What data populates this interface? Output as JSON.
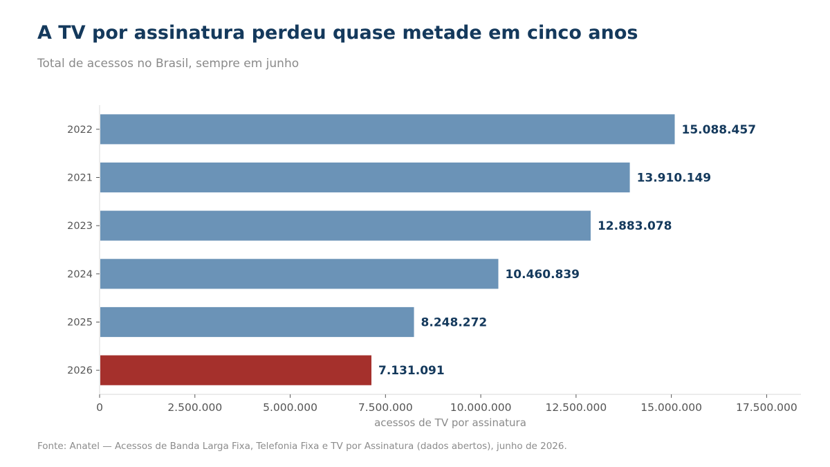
{
  "chart_data": {
    "type": "bar",
    "orientation": "horizontal",
    "title": "A TV por assinatura perdeu quase metade em cinco anos",
    "subtitle": "Total de acessos no Brasil, sempre em junho",
    "xlabel": "acessos de TV por assinatura",
    "ylabel": "",
    "categories": [
      "2022",
      "2021",
      "2023",
      "2024",
      "2025",
      "2026"
    ],
    "values": [
      15088457,
      13910149,
      12883078,
      10460839,
      8248272,
      7131091
    ],
    "value_labels": [
      "15.088.457",
      "13.910.149",
      "12.883.078",
      "10.460.839",
      "8.248.272",
      "7.131.091"
    ],
    "xlim": [
      0,
      18400000
    ],
    "xticks": [
      0,
      2500000,
      5000000,
      7500000,
      10000000,
      12500000,
      15000000,
      17500000
    ],
    "xtick_labels": [
      "0",
      "2.500.000",
      "5.000.000",
      "7.500.000",
      "10.000.000",
      "12.500.000",
      "15.000.000",
      "17.500.000"
    ],
    "grid": false,
    "colors": {
      "bar": "#6b93b7",
      "highlight": "#a5302c",
      "highlight_category": "2026",
      "value_label": "#14395c"
    }
  },
  "source": "Fonte: Anatel — Acessos de Banda Larga Fixa, Telefonia Fixa e TV por Assinatura (dados abertos), junho de 2026."
}
